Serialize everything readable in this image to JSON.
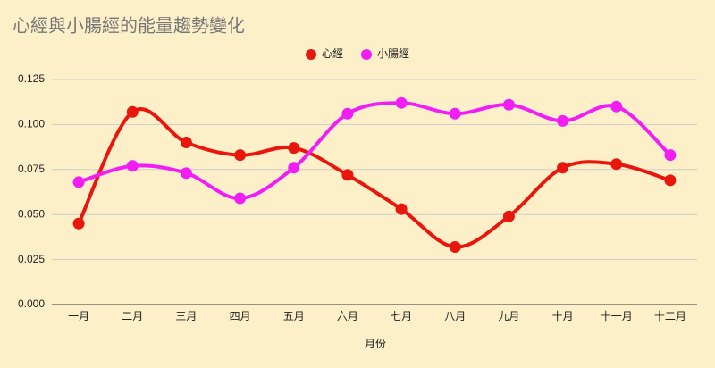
{
  "chart_data": {
    "type": "line",
    "title": "心經與小腸經的能量趨勢變化",
    "x_label": "月份",
    "categories": [
      "一月",
      "二月",
      "三月",
      "四月",
      "五月",
      "六月",
      "七月",
      "八月",
      "九月",
      "十月",
      "十一月",
      "十二月"
    ],
    "series": [
      {
        "name": "心經",
        "color": "#e8160c",
        "values": [
          0.045,
          0.107,
          0.09,
          0.083,
          0.087,
          0.072,
          0.053,
          0.032,
          0.049,
          0.076,
          0.078,
          0.069
        ]
      },
      {
        "name": "小腸經",
        "color": "#f01ef5",
        "values": [
          0.068,
          0.077,
          0.073,
          0.059,
          0.076,
          0.106,
          0.112,
          0.106,
          0.111,
          0.102,
          0.11,
          0.083
        ]
      }
    ],
    "ylim": [
      0,
      0.125
    ],
    "yticks": [
      {
        "value": 0,
        "label": "0.000"
      },
      {
        "value": 0.025,
        "label": "0.025"
      },
      {
        "value": 0.05,
        "label": "0.050"
      },
      {
        "value": 0.075,
        "label": "0.075"
      },
      {
        "value": 0.1,
        "label": "0.100"
      },
      {
        "value": 0.125,
        "label": "0.125"
      }
    ],
    "grid": true,
    "legend": "top",
    "smooth": true
  }
}
